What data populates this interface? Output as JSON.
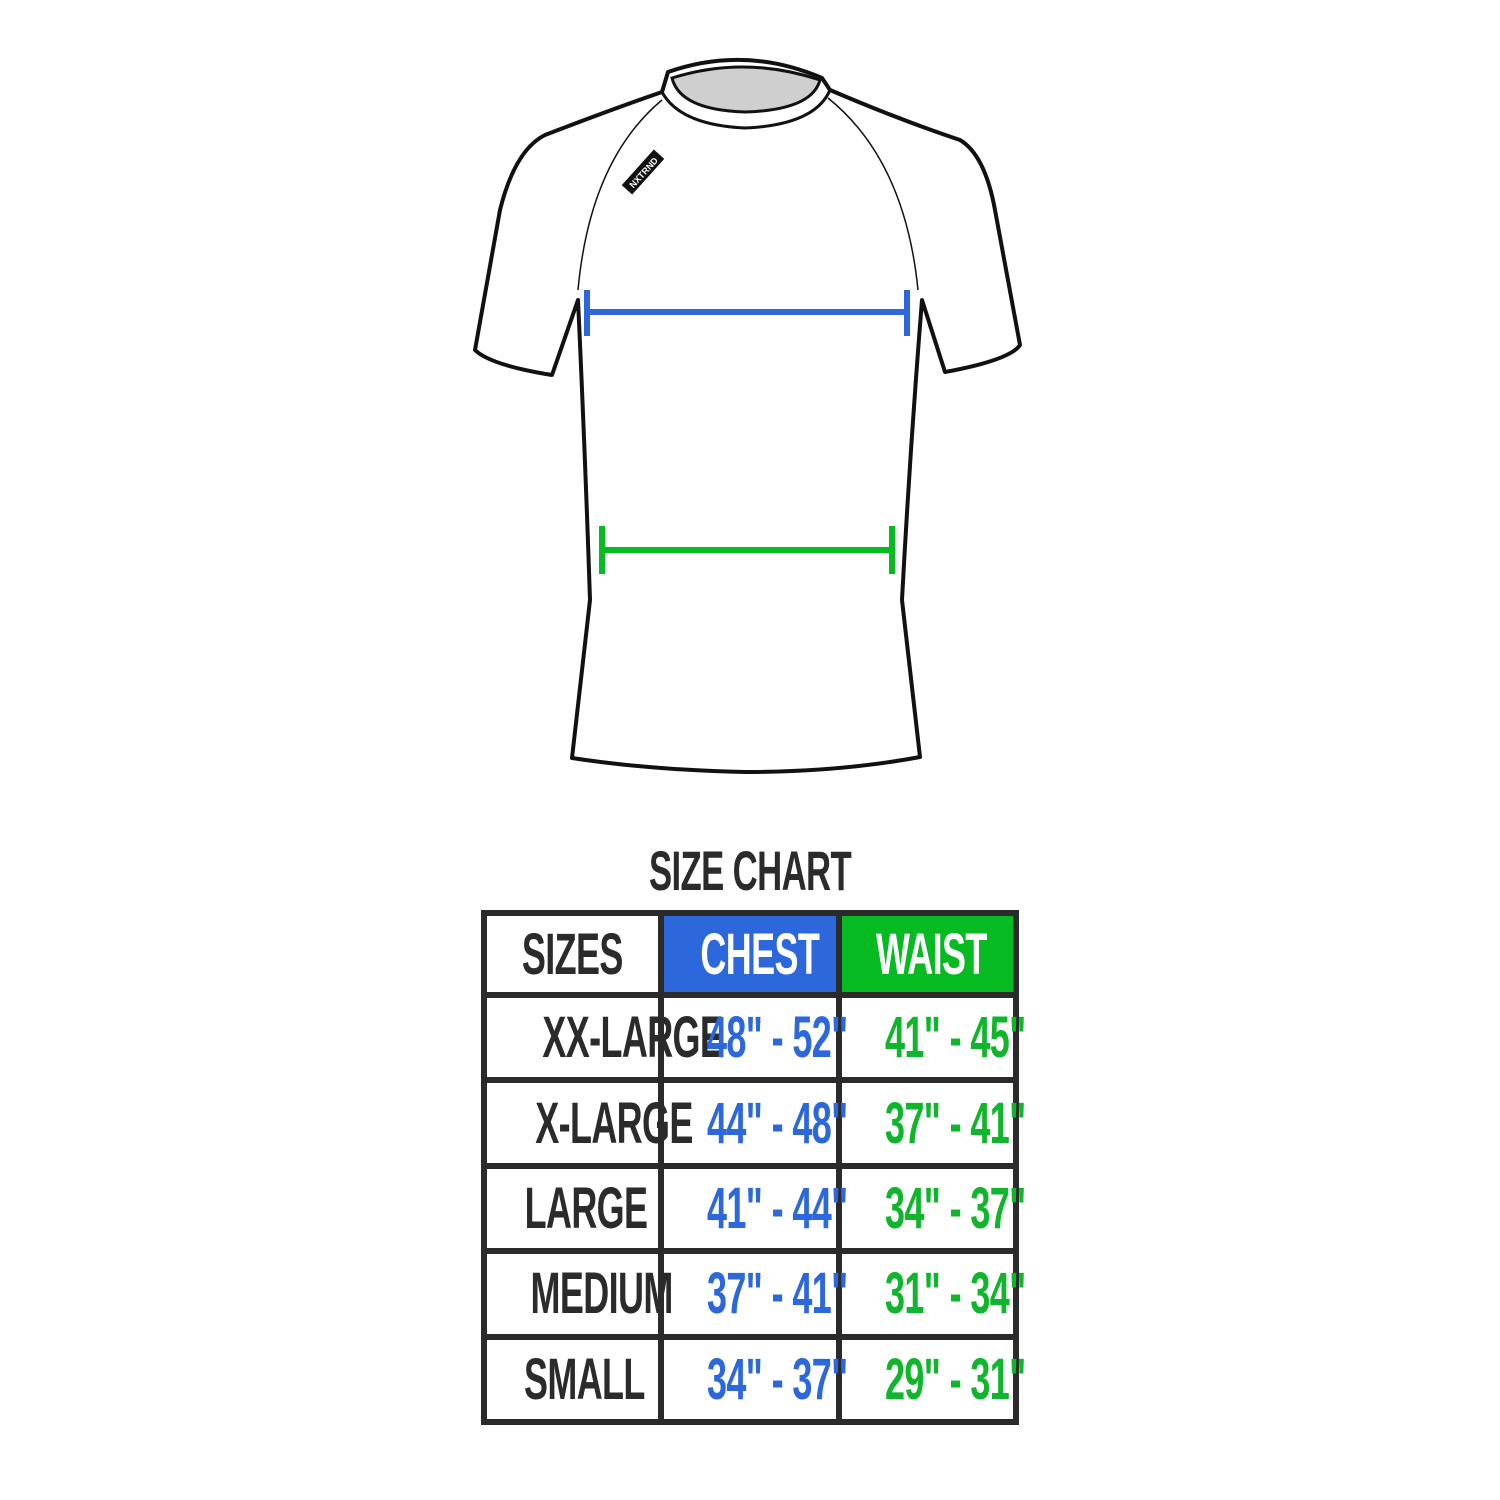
{
  "shirt": {
    "brand_label": "NXTRND",
    "chest_line_color": "#2d67dc",
    "waist_line_color": "#06ba22"
  },
  "title": "SIZE CHART",
  "table": {
    "headers": [
      "SIZES",
      "CHEST",
      "WAIST"
    ],
    "header_colors": {
      "chest": "#2d67dc",
      "waist": "#06ba22"
    },
    "rows": [
      {
        "size": "XX-LARGE",
        "chest": "48\" - 52\"",
        "waist": "41\" - 45\""
      },
      {
        "size": "X-LARGE",
        "chest": "44\" - 48\"",
        "waist": "37\" - 41\""
      },
      {
        "size": "LARGE",
        "chest": "41\" - 44\"",
        "waist": "34\" - 37\""
      },
      {
        "size": "MEDIUM",
        "chest": "37\" - 41\"",
        "waist": "31\" - 34\""
      },
      {
        "size": "SMALL",
        "chest": "34\" - 37\"",
        "waist": "29\" - 31\""
      }
    ]
  }
}
